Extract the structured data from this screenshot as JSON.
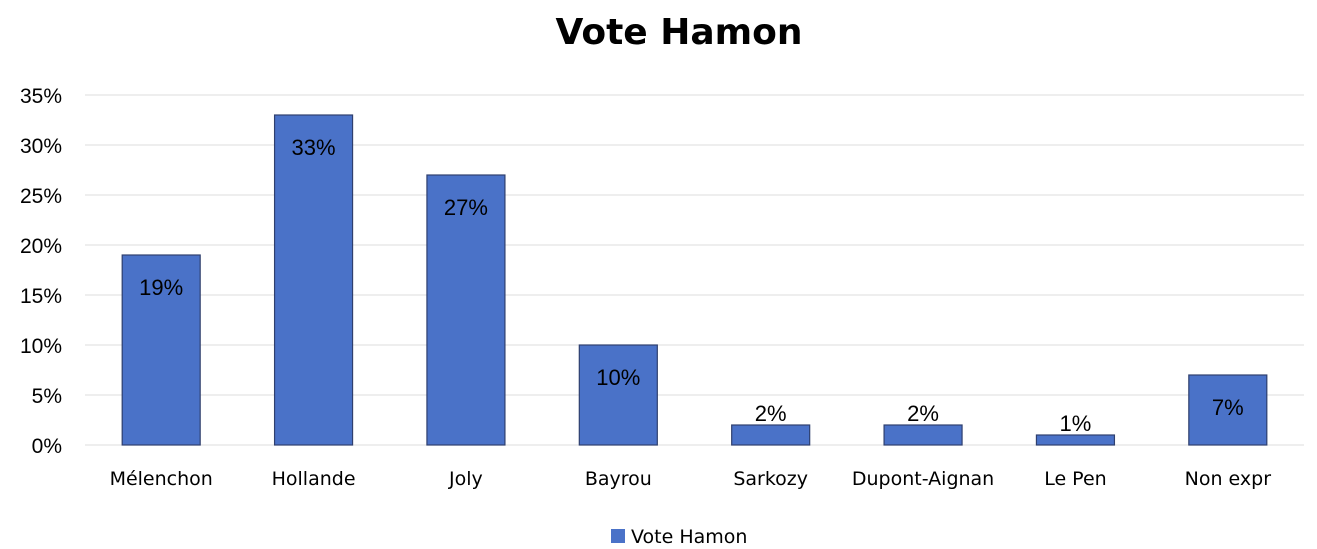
{
  "chart_data": {
    "type": "bar",
    "title": "Vote Hamon",
    "xlabel": "",
    "ylabel": "",
    "categories": [
      "Mélenchon",
      "Hollande",
      "Joly",
      "Bayrou",
      "Sarkozy",
      "Dupont-Aignan",
      "Le Pen",
      "Non expr"
    ],
    "series": [
      {
        "name": "Vote Hamon",
        "values": [
          19,
          33,
          27,
          10,
          2,
          2,
          1,
          7
        ]
      }
    ],
    "data_labels": [
      "19%",
      "33%",
      "27%",
      "10%",
      "2%",
      "2%",
      "1%",
      "7%"
    ],
    "ylim": [
      0,
      35
    ],
    "yticks": [
      0,
      5,
      10,
      15,
      20,
      25,
      30,
      35
    ],
    "ytick_labels": [
      "0%",
      "5%",
      "10%",
      "15%",
      "20%",
      "25%",
      "30%",
      "35%"
    ],
    "grid": true,
    "legend_position": "bottom",
    "colors": {
      "bar": "#4a72c8",
      "bar_edge": "#2f3f6e",
      "grid": "#dcdcdc"
    }
  }
}
